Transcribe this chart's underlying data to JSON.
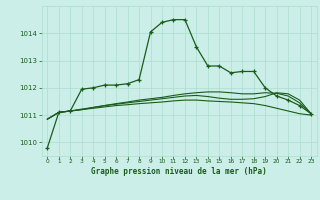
{
  "title": "Graphe pression niveau de la mer (hPa)",
  "background_color": "#cceee8",
  "grid_color": "#aaddcc",
  "line_color_dark": "#1a5c1a",
  "line_color_mid": "#2d7a2d",
  "xlim": [
    -0.5,
    23.5
  ],
  "ylim": [
    1009.5,
    1015.0
  ],
  "yticks": [
    1010,
    1011,
    1012,
    1013,
    1014
  ],
  "xticks": [
    0,
    1,
    2,
    3,
    4,
    5,
    6,
    7,
    8,
    9,
    10,
    11,
    12,
    13,
    14,
    15,
    16,
    17,
    18,
    19,
    20,
    21,
    22,
    23
  ],
  "series_main_x": [
    0,
    1,
    2,
    3,
    4,
    5,
    6,
    7,
    8,
    9,
    10,
    11,
    12,
    13,
    14,
    15,
    16,
    17,
    18,
    19,
    20,
    21,
    22,
    23
  ],
  "series_main_y": [
    1009.8,
    1011.1,
    1011.15,
    1011.95,
    1012.0,
    1012.1,
    1012.1,
    1012.15,
    1012.3,
    1014.05,
    1014.4,
    1014.5,
    1014.5,
    1013.5,
    1012.8,
    1012.8,
    1012.55,
    1012.6,
    1012.6,
    1012.0,
    1011.7,
    1011.55,
    1011.35,
    1011.05
  ],
  "series2_x": [
    0,
    1,
    2,
    3,
    4,
    5,
    6,
    7,
    8,
    9,
    10,
    11,
    12,
    13,
    14,
    15,
    16,
    17,
    18,
    19,
    20,
    21,
    22,
    23
  ],
  "series2_y": [
    1010.85,
    1011.1,
    1011.15,
    1011.2,
    1011.25,
    1011.3,
    1011.35,
    1011.38,
    1011.42,
    1011.45,
    1011.48,
    1011.52,
    1011.55,
    1011.55,
    1011.52,
    1011.5,
    1011.48,
    1011.45,
    1011.42,
    1011.35,
    1011.25,
    1011.15,
    1011.05,
    1011.0
  ],
  "series3_x": [
    0,
    1,
    2,
    3,
    4,
    5,
    6,
    7,
    8,
    9,
    10,
    11,
    12,
    13,
    14,
    15,
    16,
    17,
    18,
    19,
    20,
    21,
    22,
    23
  ],
  "series3_y": [
    1010.85,
    1011.1,
    1011.15,
    1011.22,
    1011.28,
    1011.35,
    1011.42,
    1011.48,
    1011.55,
    1011.6,
    1011.65,
    1011.72,
    1011.78,
    1011.82,
    1011.85,
    1011.85,
    1011.82,
    1011.78,
    1011.78,
    1011.82,
    1011.8,
    1011.7,
    1011.45,
    1011.05
  ],
  "series4_x": [
    0,
    1,
    2,
    3,
    4,
    5,
    6,
    7,
    8,
    9,
    10,
    11,
    12,
    13,
    14,
    15,
    16,
    17,
    18,
    19,
    20,
    21,
    22,
    23
  ],
  "series4_y": [
    1010.85,
    1011.1,
    1011.15,
    1011.2,
    1011.28,
    1011.35,
    1011.4,
    1011.45,
    1011.5,
    1011.55,
    1011.6,
    1011.65,
    1011.7,
    1011.72,
    1011.68,
    1011.62,
    1011.58,
    1011.58,
    1011.6,
    1011.68,
    1011.82,
    1011.78,
    1011.55,
    1011.05
  ]
}
